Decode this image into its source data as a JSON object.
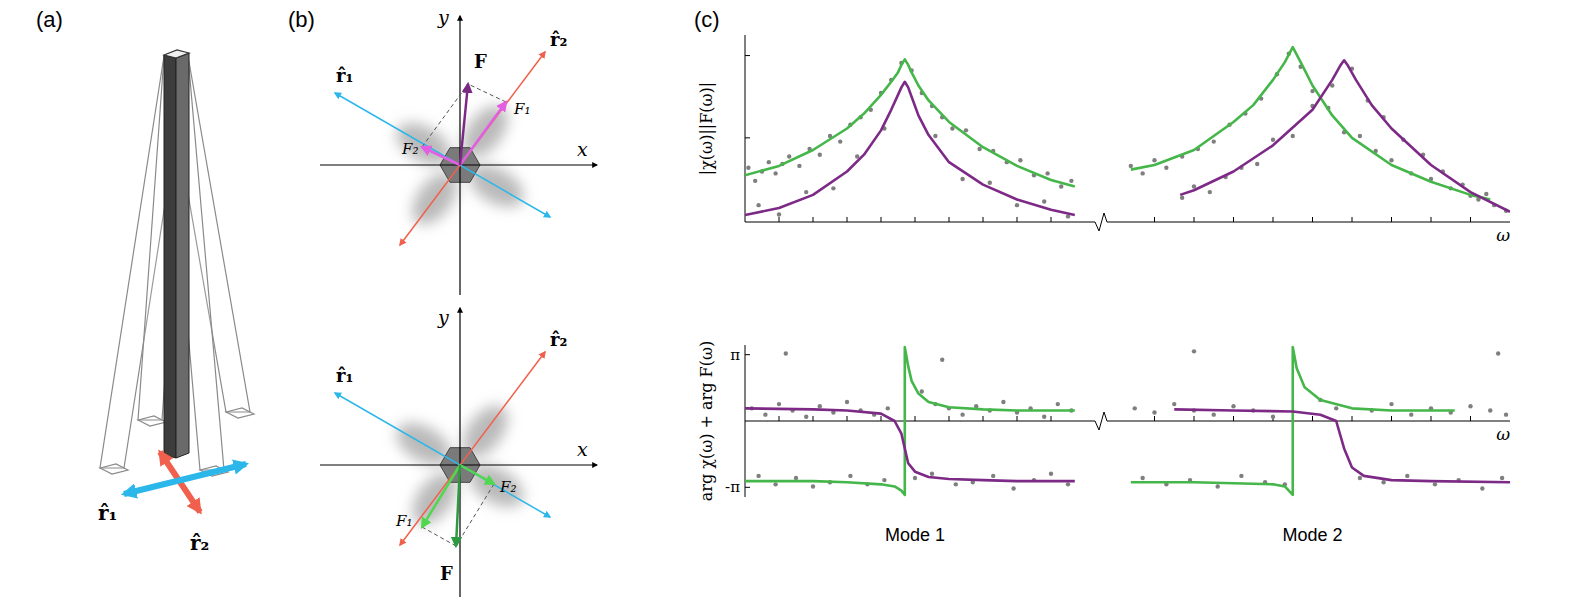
{
  "panels": {
    "a": {
      "label": "(a)",
      "r1": "r̂₁",
      "r2": "r̂₂"
    },
    "b": {
      "label": "(b)",
      "top": {
        "x": "x",
        "y": "y",
        "F": "F",
        "F1": "F₁",
        "F2": "F₂",
        "r1": "r̂₁",
        "r2": "r̂₂"
      },
      "bottom": {
        "x": "x",
        "y": "y",
        "F": "F",
        "F1": "F₁",
        "F2": "F₂",
        "r1": "r̂₁",
        "r2": "r̂₂"
      }
    },
    "c": {
      "label": "(c)"
    }
  },
  "chart_data": [
    {
      "type": "line",
      "y_label": "|χ(ω)||F(ω)|",
      "xlim": [
        0,
        10
      ],
      "xticks": [
        1,
        2,
        3,
        4,
        5,
        6,
        7,
        8,
        9
      ],
      "ylim": [
        0,
        10
      ],
      "yticks": [
        4.5,
        8.9
      ],
      "tick_labels": false,
      "series": [
        {
          "type": "scatter",
          "color": "#7f7f7f",
          "marker": "circle",
          "x": [
            0.1,
            0.3,
            0.5,
            0.7,
            0.9,
            1.1,
            1.3,
            1.6,
            1.9,
            2.2,
            2.5,
            2.8,
            3.1,
            3.4,
            3.7,
            4.0,
            4.3,
            4.6,
            4.9,
            5.2,
            5.5,
            5.8,
            6.1,
            6.5,
            6.9,
            7.3,
            7.7,
            8.1,
            8.5,
            8.9,
            9.3,
            9.6,
            0.4,
            1.0,
            1.8,
            2.6,
            3.3,
            4.1,
            5.6,
            6.4,
            7.2,
            8.0,
            8.8,
            9.5
          ],
          "values": [
            2.9,
            2.2,
            2.7,
            3.2,
            2.6,
            3.1,
            3.5,
            3.0,
            3.9,
            3.6,
            4.6,
            4.3,
            5.2,
            5.6,
            6.0,
            6.9,
            7.6,
            8.5,
            8.1,
            6.9,
            6.2,
            5.6,
            5.0,
            4.9,
            3.9,
            3.8,
            3.2,
            3.3,
            2.5,
            2.6,
            1.9,
            2.2,
            0.9,
            0.4,
            1.6,
            1.8,
            3.5,
            5.0,
            4.6,
            2.3,
            2.1,
            0.9,
            1.1,
            0.3
          ]
        },
        {
          "type": "line",
          "color": "#45b649",
          "x": [
            0,
            1,
            2,
            3,
            3.5,
            4,
            4.3,
            4.5,
            4.6,
            4.7,
            4.8,
            4.9,
            5.1,
            5.4,
            6,
            7,
            8,
            9,
            9.7
          ],
          "values": [
            2.5,
            3.0,
            3.85,
            5.0,
            5.8,
            6.8,
            7.5,
            8.0,
            8.4,
            8.7,
            8.4,
            8.0,
            7.3,
            6.5,
            5.35,
            4.0,
            3.0,
            2.25,
            1.9
          ]
        },
        {
          "type": "line",
          "color": "#7d2a86",
          "x": [
            0,
            1,
            2,
            3,
            3.5,
            4,
            4.3,
            4.5,
            4.6,
            4.7,
            4.8,
            4.9,
            5.1,
            5.4,
            6,
            7,
            8,
            9,
            9.7
          ],
          "values": [
            0.37,
            0.75,
            1.45,
            2.7,
            3.6,
            4.9,
            6.0,
            6.8,
            7.2,
            7.5,
            7.2,
            6.7,
            5.7,
            4.65,
            3.2,
            2.0,
            1.2,
            0.65,
            0.37
          ]
        }
      ]
    },
    {
      "type": "line",
      "x_label": "ω",
      "xlim": [
        0,
        10
      ],
      "xticks": [
        1,
        2,
        3,
        4,
        5,
        6,
        7,
        8,
        9
      ],
      "ylim": [
        0,
        10
      ],
      "tick_labels": false,
      "series": [
        {
          "type": "scatter",
          "color": "#7f7f7f",
          "marker": "circle",
          "x": [
            0.4,
            0.7,
            1.0,
            1.3,
            1.7,
            2.1,
            2.5,
            2.9,
            3.3,
            3.7,
            4.1,
            4.4,
            4.7,
            5.0,
            5.4,
            5.8,
            6.2,
            6.6,
            7.0,
            7.5,
            8.0,
            8.5,
            9.0,
            9.4,
            1.7,
            2.0,
            2.4,
            2.8,
            3.2,
            3.6,
            4.0,
            4.5,
            5.0,
            5.5,
            6.0,
            6.4,
            6.8,
            7.3,
            7.8,
            8.3,
            8.8,
            9.2,
            9.6,
            9.9
          ],
          "values": [
            3.0,
            2.6,
            3.3,
            2.9,
            3.5,
            3.9,
            4.3,
            5.2,
            5.8,
            6.6,
            7.9,
            9.0,
            8.3,
            7.0,
            6.1,
            4.8,
            4.6,
            3.8,
            3.3,
            2.6,
            2.3,
            1.8,
            1.4,
            1.5,
            1.3,
            1.9,
            1.6,
            2.4,
            2.9,
            3.1,
            4.4,
            4.6,
            6.2,
            7.3,
            8.2,
            6.5,
            5.6,
            4.4,
            3.6,
            2.7,
            2.0,
            1.2,
            0.9,
            0.6
          ]
        },
        {
          "type": "line",
          "color": "#45b649",
          "x": [
            0.4,
            1,
            2,
            3,
            3.5,
            4,
            4.3,
            4.5,
            4.7,
            5,
            5.5,
            6,
            7,
            8,
            9,
            9.5
          ],
          "values": [
            2.8,
            3.05,
            3.85,
            5.35,
            6.25,
            7.6,
            8.55,
            9.35,
            8.55,
            7.3,
            5.7,
            4.5,
            3.05,
            2.15,
            1.45,
            1.2
          ]
        },
        {
          "type": "line",
          "color": "#7d2a86",
          "x": [
            1.65,
            2,
            3,
            4,
            5,
            5.5,
            5.7,
            5.8,
            5.9,
            6.1,
            6.5,
            7,
            8,
            9,
            10
          ],
          "values": [
            1.45,
            1.7,
            2.7,
            4.1,
            6.0,
            7.6,
            8.35,
            8.65,
            8.35,
            7.6,
            6.25,
            5.0,
            3.05,
            1.6,
            0.55
          ]
        }
      ]
    },
    {
      "type": "line",
      "title": "Mode 1",
      "y_label": "arg χ(ω) + arg F(ω)",
      "xlim": [
        0,
        10
      ],
      "xticks": [
        1,
        2,
        3,
        4,
        5,
        6,
        7,
        8,
        9
      ],
      "ylim": [
        -3.6,
        3.6
      ],
      "yticks": [
        {
          "value": 3.1416,
          "label": "π"
        },
        {
          "value": -3.1416,
          "label": "-π"
        }
      ],
      "tick_labels": "y",
      "series": [
        {
          "type": "scatter",
          "color": "#7f7f7f",
          "marker": "circle",
          "x": [
            0.2,
            0.6,
            1.0,
            1.4,
            1.8,
            2.2,
            2.6,
            3.0,
            3.4,
            3.8,
            4.2,
            5.2,
            5.6,
            6.0,
            6.4,
            6.8,
            7.2,
            7.6,
            8.0,
            8.4,
            8.8,
            9.2,
            9.6,
            0.4,
            0.9,
            1.5,
            2.0,
            2.5,
            3.1,
            3.6,
            4.1,
            5.0,
            5.5,
            6.2,
            6.7,
            7.3,
            7.9,
            8.5,
            9.0,
            9.5,
            1.2,
            5.8
          ],
          "values": [
            0.6,
            0.3,
            0.8,
            0.5,
            0.2,
            0.7,
            0.4,
            0.9,
            0.5,
            0.3,
            0.6,
            1.4,
            0.8,
            0.6,
            0.3,
            0.7,
            0.5,
            0.9,
            0.4,
            0.6,
            0.2,
            0.8,
            0.5,
            -2.6,
            -3.0,
            -2.7,
            -3.1,
            -2.9,
            -2.6,
            -3.0,
            -2.8,
            -2.7,
            -2.5,
            -3.0,
            -2.9,
            -2.6,
            -3.2,
            -2.8,
            -2.5,
            -3.0,
            3.2,
            2.9
          ]
        },
        {
          "type": "line",
          "color": "#45b649",
          "x": [
            0,
            2,
            3,
            4,
            4.4,
            4.6,
            4.7,
            4.7,
            4.8,
            4.9,
            5.1,
            5.4,
            6,
            7,
            8,
            9.7
          ],
          "values": [
            -2.85,
            -2.85,
            -2.9,
            -3.0,
            -3.1,
            -3.3,
            -3.5,
            3.5,
            2.6,
            1.9,
            1.3,
            0.9,
            0.65,
            0.55,
            0.5,
            0.5
          ]
        },
        {
          "type": "line",
          "color": "#7d2a86",
          "x": [
            0,
            2,
            3,
            4,
            4.4,
            4.6,
            4.7,
            4.8,
            5.0,
            5.4,
            6,
            7,
            8,
            9.7
          ],
          "values": [
            0.6,
            0.55,
            0.5,
            0.35,
            0.0,
            -0.6,
            -1.3,
            -2.0,
            -2.4,
            -2.65,
            -2.75,
            -2.8,
            -2.85,
            -2.85
          ]
        }
      ]
    },
    {
      "type": "line",
      "title": "Mode 2",
      "x_label": "ω",
      "xlim": [
        0,
        10
      ],
      "xticks": [
        1,
        2,
        3,
        4,
        5,
        6,
        7,
        8,
        9
      ],
      "ylim": [
        -3.6,
        3.6
      ],
      "tick_labels": false,
      "series": [
        {
          "type": "scatter",
          "color": "#7f7f7f",
          "marker": "circle",
          "x": [
            0.5,
            1.0,
            1.5,
            2.0,
            2.5,
            3.0,
            3.5,
            4.0,
            5.2,
            5.6,
            6.5,
            7.0,
            7.5,
            8.0,
            8.5,
            9.0,
            9.5,
            9.9,
            0.7,
            1.3,
            1.9,
            2.6,
            3.2,
            3.8,
            4.3,
            6.2,
            6.8,
            7.4,
            8.1,
            8.7,
            9.3,
            9.8,
            2.0,
            9.7
          ],
          "values": [
            0.6,
            0.4,
            0.8,
            0.5,
            0.3,
            0.7,
            0.5,
            0.2,
            1.0,
            0.6,
            0.5,
            0.8,
            0.3,
            0.6,
            0.4,
            0.7,
            0.5,
            0.3,
            -2.7,
            -3.0,
            -2.8,
            -3.1,
            -2.6,
            -2.9,
            -3.0,
            -2.7,
            -2.9,
            -2.6,
            -3.0,
            -2.8,
            -3.2,
            -2.7,
            3.3,
            3.2
          ]
        },
        {
          "type": "line",
          "color": "#45b649",
          "x": [
            0.4,
            2,
            3,
            4,
            4.3,
            4.5,
            4.5,
            4.6,
            4.8,
            5.2,
            6,
            7,
            8.6
          ],
          "values": [
            -2.9,
            -2.9,
            -2.95,
            -3.0,
            -3.1,
            -3.5,
            3.5,
            2.5,
            1.6,
            1.0,
            0.6,
            0.5,
            0.5
          ]
        },
        {
          "type": "line",
          "color": "#7d2a86",
          "x": [
            1.5,
            3,
            4.5,
            5.2,
            5.6,
            5.8,
            6.0,
            6.3,
            7,
            8,
            10
          ],
          "values": [
            0.55,
            0.5,
            0.45,
            0.3,
            0.0,
            -1.3,
            -2.2,
            -2.6,
            -2.8,
            -2.85,
            -2.9
          ]
        }
      ]
    }
  ]
}
